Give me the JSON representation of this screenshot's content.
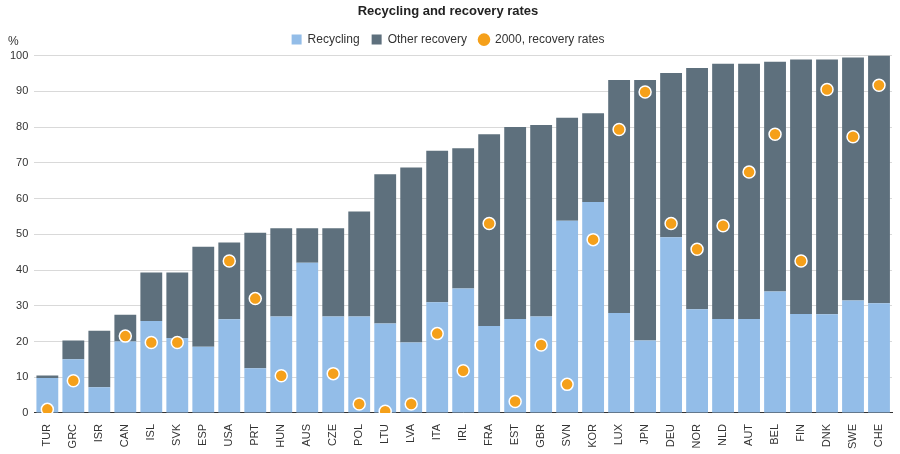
{
  "chart_data": {
    "type": "bar",
    "title": "Recycling and recovery rates",
    "ylabel": "%",
    "categories": [
      "TUR",
      "GRC",
      "ISR",
      "CAN",
      "ISL",
      "SVK",
      "ESP",
      "USA",
      "PRT",
      "HUN",
      "AUS",
      "CZE",
      "POL",
      "LTU",
      "LVA",
      "ITA",
      "IRL",
      "FRA",
      "EST",
      "GBR",
      "SVN",
      "KOR",
      "LUX",
      "JPN",
      "DEU",
      "NOR",
      "NLD",
      "AUT",
      "BEL",
      "FIN",
      "DNK",
      "SWE",
      "CHE"
    ],
    "series": [
      {
        "name": "Recycling",
        "type": "bar",
        "color": "#93bde8",
        "values": [
          9.8,
          15,
          7.2,
          20,
          25.7,
          21,
          18.5,
          26.2,
          12.5,
          27,
          42,
          27,
          27,
          25,
          19.7,
          31,
          34.8,
          24.3,
          26.3,
          27,
          53.8,
          59,
          28,
          20.3,
          49.2,
          29,
          26.3,
          26.3,
          34,
          27.7,
          27.6,
          31.5,
          30.7
        ]
      },
      {
        "name": "Other recovery",
        "type": "bar",
        "color": "#5e707d",
        "values": [
          0.7,
          5.3,
          15.8,
          7.5,
          13.6,
          18.3,
          28,
          21.5,
          37.9,
          24.7,
          9.7,
          24.7,
          29.4,
          41.8,
          49,
          42.4,
          39.3,
          53.7,
          53.7,
          53.6,
          28.8,
          24.9,
          65.2,
          72.9,
          45.9,
          67.5,
          71.4,
          71.4,
          64.3,
          71.2,
          71.3,
          68,
          69.3
        ]
      },
      {
        "name": "2000, recovery rates",
        "type": "scatter",
        "marker": "circle",
        "color": "#f5a01a",
        "values": [
          1,
          9,
          null,
          21.5,
          19.7,
          19.7,
          null,
          42.5,
          32,
          10.4,
          null,
          11,
          2.5,
          0.5,
          2.5,
          22.2,
          11.8,
          53,
          3.2,
          19,
          8,
          48.5,
          79.3,
          89.8,
          53,
          45.8,
          52.4,
          67.4,
          78,
          42.5,
          90.5,
          77.3,
          91.7
        ]
      }
    ],
    "ylim": [
      0,
      100
    ],
    "yticks": [
      0,
      10,
      20,
      30,
      40,
      50,
      60,
      70,
      80,
      90,
      100
    ],
    "grid": true,
    "stacked": true,
    "legend": "top"
  }
}
